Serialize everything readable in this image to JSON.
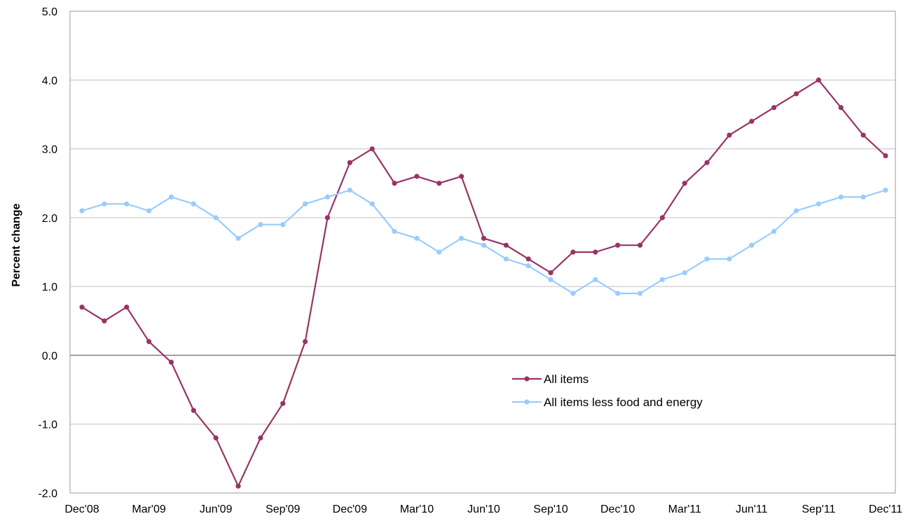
{
  "chart_data": {
    "type": "line",
    "ylabel": "Percent change",
    "xlabel": "",
    "ylim": [
      -2.0,
      5.0
    ],
    "y_ticks": [
      "5.0",
      "4.0",
      "3.0",
      "2.0",
      "1.0",
      "0.0",
      "-1.0",
      "-2.0"
    ],
    "x_tick_labels": [
      "Dec'08",
      "Mar'09",
      "Jun'09",
      "Sep'09",
      "Dec'09",
      "Mar'10",
      "Jun'10",
      "Sep'10",
      "Dec'10",
      "Mar'11",
      "Jun'11",
      "Sep'11",
      "Dec'11"
    ],
    "x": [
      "Dec'08",
      "Jan'09",
      "Feb'09",
      "Mar'09",
      "Apr'09",
      "May'09",
      "Jun'09",
      "Jul'09",
      "Aug'09",
      "Sep'09",
      "Oct'09",
      "Nov'09",
      "Dec'09",
      "Jan'10",
      "Feb'10",
      "Mar'10",
      "Apr'10",
      "May'10",
      "Jun'10",
      "Jul'10",
      "Aug'10",
      "Sep'10",
      "Oct'10",
      "Nov'10",
      "Dec'10",
      "Jan'11",
      "Feb'11",
      "Mar'11",
      "Apr'11",
      "May'11",
      "Jun'11",
      "Jul'11",
      "Aug'11",
      "Sep'11",
      "Oct'11",
      "Nov'11",
      "Dec'11"
    ],
    "grid": "horizontal",
    "legend_position": "center-right",
    "series": [
      {
        "name": "All items",
        "color": "#993366",
        "values": [
          0.7,
          0.5,
          0.7,
          0.2,
          -0.1,
          -0.8,
          -1.2,
          -1.9,
          -1.2,
          -0.7,
          0.2,
          2.0,
          2.8,
          3.0,
          2.5,
          2.6,
          2.5,
          2.6,
          1.7,
          1.6,
          1.4,
          1.2,
          1.5,
          1.5,
          1.6,
          1.6,
          2.0,
          2.5,
          2.8,
          3.2,
          3.4,
          3.6,
          3.8,
          4.0,
          3.6,
          3.2,
          2.9
        ]
      },
      {
        "name": "All items less food and energy",
        "color": "#99ccff",
        "values": [
          2.1,
          2.2,
          2.2,
          2.1,
          2.3,
          2.2,
          2.0,
          1.7,
          1.9,
          1.9,
          2.2,
          2.3,
          2.4,
          2.2,
          1.8,
          1.7,
          1.5,
          1.7,
          1.6,
          1.4,
          1.3,
          1.1,
          0.9,
          1.1,
          0.9,
          0.9,
          1.1,
          1.2,
          1.4,
          1.4,
          1.6,
          1.8,
          2.1,
          2.2,
          2.3,
          2.3,
          2.4
        ]
      }
    ]
  }
}
